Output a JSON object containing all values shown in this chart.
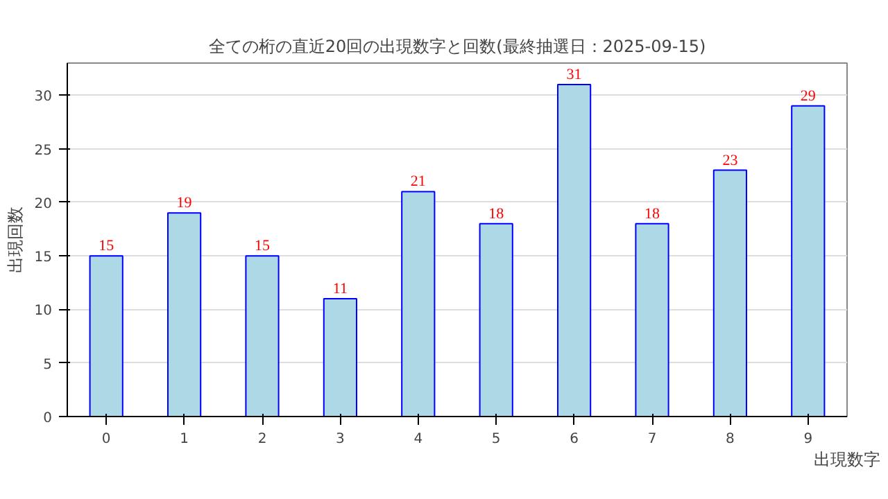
{
  "chart_data": {
    "type": "bar",
    "title": "全ての桁の直近20回の出現数字と回数(最終抽選日：2025-09-15)",
    "xlabel": "出現数字",
    "ylabel": "出現回数",
    "categories": [
      "0",
      "1",
      "2",
      "3",
      "4",
      "5",
      "6",
      "7",
      "8",
      "9"
    ],
    "values": [
      15,
      19,
      15,
      11,
      21,
      18,
      31,
      18,
      23,
      29
    ],
    "color": "#add8e6",
    "ylim": [
      0,
      33
    ],
    "yticks": [
      0,
      5,
      10,
      15,
      20,
      25,
      30
    ],
    "grid": "y",
    "data_labels": true
  }
}
